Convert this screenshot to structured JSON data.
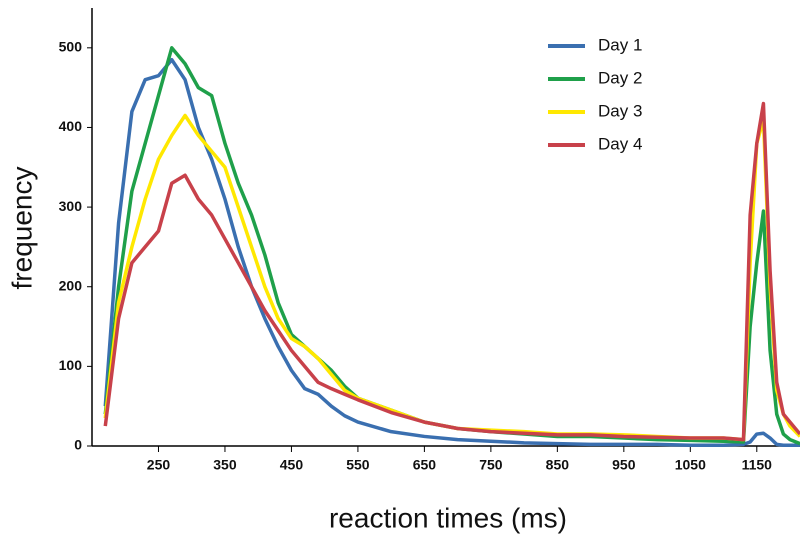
{
  "chart_data": {
    "type": "line",
    "xlabel": "reaction times (ms)",
    "ylabel": "frequency",
    "x": [
      170,
      190,
      210,
      230,
      250,
      270,
      290,
      310,
      330,
      350,
      370,
      390,
      410,
      430,
      450,
      470,
      490,
      510,
      530,
      550,
      600,
      650,
      700,
      750,
      800,
      850,
      900,
      950,
      1000,
      1050,
      1100,
      1130,
      1140,
      1150,
      1160,
      1170,
      1180,
      1190,
      1200,
      1215
    ],
    "series": [
      {
        "name": "Day 1",
        "color": "#3a6fb0",
        "values": [
          50,
          280,
          420,
          460,
          465,
          485,
          460,
          400,
          360,
          310,
          250,
          200,
          160,
          125,
          95,
          72,
          65,
          50,
          38,
          30,
          18,
          12,
          8,
          6,
          4,
          3,
          2,
          2,
          2,
          1,
          1,
          2,
          5,
          15,
          16,
          10,
          2,
          1,
          1,
          1
        ]
      },
      {
        "name": "Day 2",
        "color": "#1fa04a",
        "values": [
          40,
          200,
          320,
          380,
          440,
          500,
          480,
          450,
          440,
          380,
          330,
          290,
          240,
          180,
          140,
          125,
          110,
          95,
          75,
          60,
          45,
          30,
          22,
          18,
          15,
          12,
          12,
          10,
          8,
          7,
          6,
          5,
          150,
          230,
          295,
          120,
          40,
          15,
          8,
          3
        ]
      },
      {
        "name": "Day 3",
        "color": "#ffe800",
        "values": [
          35,
          180,
          250,
          310,
          360,
          390,
          415,
          390,
          370,
          350,
          300,
          250,
          200,
          160,
          135,
          125,
          110,
          90,
          70,
          60,
          45,
          30,
          22,
          20,
          18,
          15,
          15,
          14,
          12,
          10,
          10,
          8,
          230,
          380,
          410,
          200,
          70,
          40,
          25,
          12
        ]
      },
      {
        "name": "Day 4",
        "color": "#c8414a",
        "values": [
          25,
          160,
          230,
          250,
          270,
          330,
          340,
          310,
          290,
          260,
          230,
          200,
          170,
          145,
          120,
          100,
          80,
          72,
          65,
          58,
          42,
          30,
          22,
          18,
          16,
          14,
          14,
          12,
          11,
          10,
          10,
          8,
          290,
          380,
          430,
          220,
          80,
          40,
          30,
          15
        ]
      }
    ],
    "xlim": [
      150,
      1215
    ],
    "ylim": [
      0,
      550
    ],
    "xticks": [
      250,
      350,
      450,
      550,
      650,
      750,
      850,
      950,
      1050,
      1150
    ],
    "yticks": [
      0,
      100,
      200,
      300,
      400,
      500
    ],
    "legend": "upper right"
  }
}
